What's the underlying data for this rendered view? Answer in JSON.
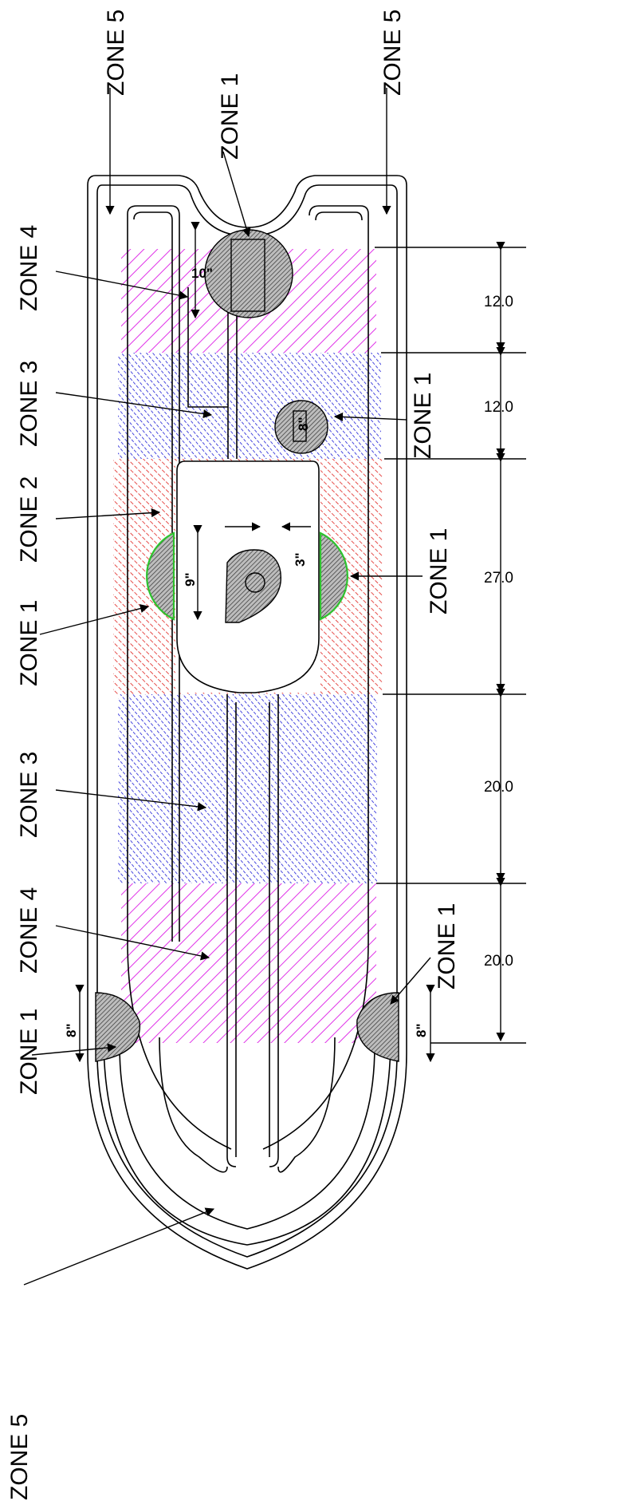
{
  "colors": {
    "zone1": "#3a3a3a",
    "zone2": "#e0201c",
    "zone3": "#1a1ad6",
    "zone4": "#e033e8",
    "outline": "#000000",
    "highlight": "#2ec22e"
  },
  "zone_labels": {
    "top_left_zone5": "ZONE 5",
    "top_right_zone5": "ZONE 5",
    "top_center_zone1": "ZONE 1",
    "left_zone4_top": "ZONE 4",
    "left_zone3_top": "ZONE 3",
    "left_zone2": "ZONE 2",
    "left_zone1_mid": "ZONE 1",
    "left_zone3_bottom": "ZONE 3",
    "left_zone4_bottom": "ZONE 4",
    "left_zone1_bottom": "ZONE 1",
    "bottom_left_zone5": "ZONE 5",
    "right_zone1_upper": "ZONE 1",
    "right_zone1_mid": "ZONE 1",
    "right_zone1_bottom": "ZONE 1"
  },
  "section_dimensions": [
    "12.0",
    "12.0",
    "27.0",
    "20.0",
    "20.0"
  ],
  "detail_dimensions": {
    "top_circle": "10\"",
    "small_circle": "8\"",
    "left_circle": "9\"",
    "center_offset": "3\"",
    "bottom_left_circle": "8\"",
    "bottom_right_circle": "8\""
  }
}
